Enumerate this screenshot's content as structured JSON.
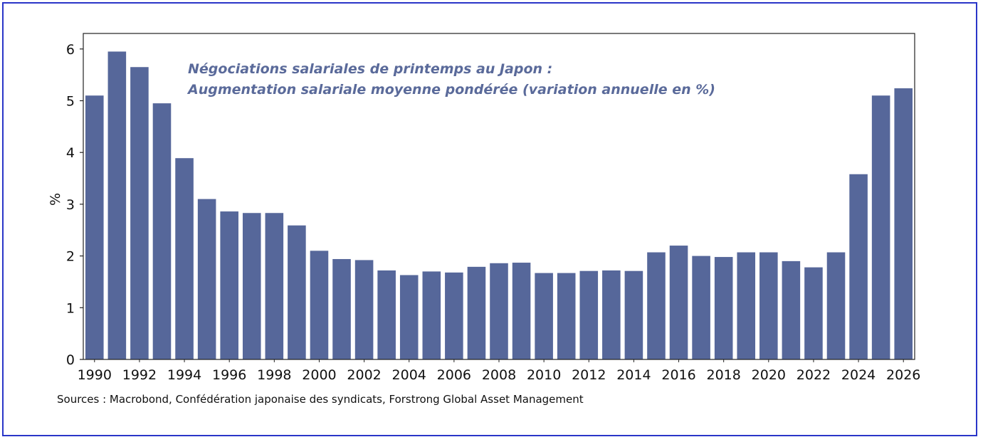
{
  "chart_data": {
    "type": "bar",
    "title_lines": [
      "Négociations salariales de printemps au Japon :",
      "Augmentation salariale moyenne pondérée (variation annuelle en %)"
    ],
    "xlabel": "",
    "ylabel": "%",
    "ylim": [
      0,
      6.3
    ],
    "yticks": [
      0,
      1,
      2,
      3,
      4,
      5,
      6
    ],
    "xtick_labels": [
      "1990",
      "1992",
      "1994",
      "1996",
      "1998",
      "2000",
      "2002",
      "2004",
      "2006",
      "2008",
      "2010",
      "2012",
      "2014",
      "2016",
      "2018",
      "2020",
      "2022",
      "2024",
      "2026"
    ],
    "categories": [
      1990,
      1991,
      1992,
      1993,
      1994,
      1995,
      1996,
      1997,
      1998,
      1999,
      2000,
      2001,
      2002,
      2003,
      2004,
      2005,
      2006,
      2007,
      2008,
      2009,
      2010,
      2011,
      2012,
      2013,
      2014,
      2015,
      2016,
      2017,
      2018,
      2019,
      2020,
      2021,
      2022,
      2023,
      2024,
      2025,
      2026
    ],
    "values": [
      5.1,
      5.95,
      5.65,
      4.95,
      3.89,
      3.1,
      2.86,
      2.83,
      2.83,
      2.59,
      2.1,
      1.94,
      1.92,
      1.72,
      1.63,
      1.7,
      1.68,
      1.79,
      1.86,
      1.87,
      1.67,
      1.67,
      1.71,
      1.72,
      1.71,
      2.07,
      2.2,
      2.0,
      1.98,
      2.07,
      2.07,
      1.9,
      1.78,
      2.07,
      3.58,
      5.1,
      5.24
    ],
    "grid": false,
    "bar_color": "#56679a"
  },
  "source_note": "Sources : Macrobond, Confédération japonaise des syndicats, Forstrong Global Asset Management"
}
